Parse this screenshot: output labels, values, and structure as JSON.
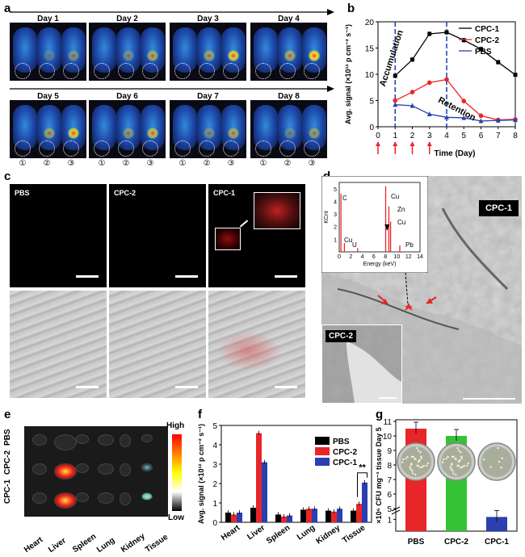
{
  "panels": {
    "a": "a",
    "b": "b",
    "c": "c",
    "d": "d",
    "e": "e",
    "f": "f",
    "g": "g"
  },
  "panel_a": {
    "days": [
      "Day 1",
      "Day 2",
      "Day 3",
      "Day 4",
      "Day 5",
      "Day 6",
      "Day 7",
      "Day 8"
    ],
    "markers": [
      "①",
      "②",
      "③"
    ]
  },
  "panel_b_annotations": {
    "accumulation": "Accumulation",
    "retention": "Retention"
  },
  "panel_c": {
    "labels": [
      "PBS",
      "CPC-2",
      "CPC-1"
    ]
  },
  "panel_d": {
    "main_label": "CPC-1",
    "inset_label": "CPC-2",
    "eds": {
      "ylabel": "KCnt",
      "xlabel": "Energy (keV)",
      "yticks": [
        "1",
        "2",
        "3",
        "4",
        "5"
      ],
      "xticks": [
        "0",
        "2",
        "4",
        "6",
        "8",
        "10",
        "12",
        "14"
      ],
      "peaks": [
        "C",
        "Cu",
        "U",
        "Cu",
        "Zn",
        "Cu",
        "Pb"
      ]
    }
  },
  "panel_e": {
    "rows": [
      "PBS",
      "CPC-2",
      "CPC-1"
    ],
    "cols": [
      "Heart",
      "Liver",
      "Spleen",
      "Lung",
      "Kidney",
      "Tissue"
    ],
    "scale_high": "High",
    "scale_low": "Low"
  },
  "chart_data": [
    {
      "type": "line",
      "xlabel": "Time (Day)",
      "ylabel": "Avg. signal (×10¹² p cm⁻² s⁻¹)",
      "x": [
        0,
        1,
        2,
        3,
        4,
        5,
        6,
        7,
        8
      ],
      "xlim": [
        0,
        8
      ],
      "ylim": [
        0,
        20
      ],
      "yticks": [
        0,
        5,
        10,
        15,
        20
      ],
      "legend_position": "top-right",
      "colors": {
        "CPC-1": "#000000",
        "CPC-2": "#e8262a",
        "PBS": "#2a3fb0"
      },
      "series": [
        {
          "name": "CPC-1",
          "x": [
            1,
            2,
            3,
            4,
            5,
            6,
            7,
            8
          ],
          "values": [
            9.7,
            12.8,
            17.7,
            18.0,
            16.5,
            14.8,
            12.3,
            9.9
          ]
        },
        {
          "name": "CPC-2",
          "x": [
            1,
            2,
            3,
            4,
            5,
            6,
            7,
            8
          ],
          "values": [
            5.0,
            6.6,
            8.4,
            9.0,
            4.9,
            2.1,
            1.3,
            1.4
          ]
        },
        {
          "name": "PBS",
          "x": [
            1,
            2,
            3,
            4,
            5,
            6,
            7,
            8
          ],
          "values": [
            4.2,
            4.0,
            2.4,
            1.8,
            1.7,
            1.1,
            1.2,
            1.3
          ]
        }
      ],
      "injection_days": [
        0,
        1,
        2,
        3
      ]
    },
    {
      "type": "bar",
      "ylabel": "Avg. signal (×10¹² p cm⁻² s⁻¹)",
      "categories": [
        "Heart",
        "Liver",
        "Spleen",
        "Lung",
        "Kidney",
        "Tissue"
      ],
      "ylim": [
        0,
        5
      ],
      "yticks": [
        0,
        1,
        2,
        3,
        4,
        5
      ],
      "legend_position": "top-right",
      "colors": {
        "PBS": "#000000",
        "CPC-2": "#e8262a",
        "CPC-1": "#2a3fb0"
      },
      "series": [
        {
          "name": "PBS",
          "values": [
            0.5,
            0.75,
            0.4,
            0.65,
            0.6,
            0.6
          ]
        },
        {
          "name": "CPC-2",
          "values": [
            0.4,
            4.6,
            0.3,
            0.7,
            0.55,
            0.95
          ]
        },
        {
          "name": "CPC-1",
          "values": [
            0.5,
            3.1,
            0.35,
            0.7,
            0.7,
            2.05
          ]
        }
      ],
      "annotation": "**"
    },
    {
      "type": "bar",
      "ylabel": "×10⁶ CFU mg⁻¹ tissue Day 5",
      "categories": [
        "PBS",
        "CPC-2",
        "CPC-1"
      ],
      "yticks": [
        "1",
        "5",
        "6",
        "7",
        "8",
        "9",
        "10",
        "11"
      ],
      "values": [
        10.5,
        10.0,
        1.2
      ],
      "colors": [
        "#e8262a",
        "#35c235",
        "#2a3fb0"
      ]
    }
  ]
}
